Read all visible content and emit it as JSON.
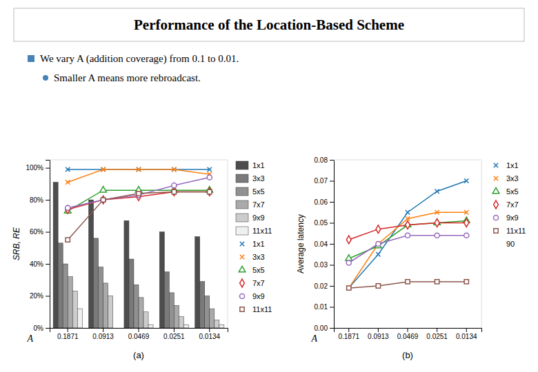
{
  "title": "Performance of the Location-Based Scheme",
  "annotations": [
    "We vary A (addition coverage) from 0.1 to 0.01.",
    "Smaller A means more rebroadcast."
  ],
  "chart_data": [
    {
      "type": "bar",
      "title": "(a)",
      "xlabel": "A",
      "ylabel": "SRB, RE",
      "categories": [
        "0.1871",
        "0.0913",
        "0.0469",
        "0.0251",
        "0.0134"
      ],
      "ylim": [
        0,
        105
      ],
      "yticks": [
        {
          "value": 0,
          "label": "0%"
        },
        {
          "value": 20,
          "label": "20%"
        },
        {
          "value": 40,
          "label": "40%"
        },
        {
          "value": 60,
          "label": "60%"
        },
        {
          "value": 80,
          "label": "80%"
        },
        {
          "value": 100,
          "label": "100%"
        }
      ],
      "legend": "right",
      "series": [
        {
          "name": "1x1",
          "type": "bar",
          "color": "#4d4d4d",
          "values": [
            91,
            80,
            67,
            60,
            57
          ]
        },
        {
          "name": "3x3",
          "type": "bar",
          "color": "#7a7a7a",
          "values": [
            53,
            56,
            43,
            35,
            29
          ]
        },
        {
          "name": "5x5",
          "type": "bar",
          "color": "#919191",
          "values": [
            40,
            38,
            27,
            22,
            20
          ]
        },
        {
          "name": "7x7",
          "type": "bar",
          "color": "#aaaaaa",
          "values": [
            32,
            28,
            19,
            14,
            12
          ]
        },
        {
          "name": "9x9",
          "type": "bar",
          "color": "#cccccc",
          "values": [
            23,
            20,
            10,
            7,
            5
          ]
        },
        {
          "name": "11x11",
          "type": "bar",
          "color": "#f0f0f0",
          "values": [
            12,
            0,
            2,
            2,
            2
          ]
        },
        {
          "name": "1x1",
          "type": "line",
          "marker": "x",
          "values": [
            99,
            99,
            99,
            99,
            99
          ]
        },
        {
          "name": "3x3",
          "type": "line",
          "marker": "x",
          "values": [
            91,
            99,
            99,
            99,
            96
          ]
        },
        {
          "name": "5x5",
          "type": "line",
          "marker": "triangle",
          "values": [
            73,
            86,
            86,
            86,
            86
          ]
        },
        {
          "name": "7x7",
          "type": "line",
          "marker": "diamond",
          "values": [
            74,
            80,
            82,
            85,
            85
          ]
        },
        {
          "name": "9x9",
          "type": "line",
          "marker": "circle",
          "values": [
            75,
            80,
            83,
            89,
            94
          ]
        },
        {
          "name": "11x11",
          "type": "line",
          "marker": "square",
          "values": [
            55,
            80,
            84,
            85,
            85
          ]
        }
      ]
    },
    {
      "type": "line",
      "title": "(b)",
      "xlabel": "A",
      "ylabel": "Average latency",
      "categories": [
        "0.1871",
        "0.0913",
        "0.0469",
        "0.0251",
        "0.0134"
      ],
      "ylim": [
        0,
        0.08
      ],
      "yticks": [
        {
          "value": 0,
          "label": "0.00"
        },
        0.01,
        0.02,
        0.03,
        0.04,
        0.05,
        0.06,
        0.07,
        0.08
      ],
      "legend": "right",
      "annotations": [
        "90"
      ],
      "series": [
        {
          "name": "1x1",
          "marker": "x",
          "values": [
            0.019,
            0.035,
            0.055,
            0.065,
            0.07
          ]
        },
        {
          "name": "3x3",
          "marker": "x",
          "values": [
            0.019,
            0.04,
            0.052,
            0.055,
            0.055
          ]
        },
        {
          "name": "5x5",
          "marker": "triangle",
          "values": [
            0.033,
            0.039,
            0.049,
            0.05,
            0.051
          ]
        },
        {
          "name": "7x7",
          "marker": "diamond",
          "values": [
            0.042,
            0.047,
            0.049,
            0.05,
            0.05
          ]
        },
        {
          "name": "9x9",
          "marker": "circle",
          "values": [
            0.031,
            0.04,
            0.044,
            0.044,
            0.044
          ]
        },
        {
          "name": "11x11",
          "marker": "square",
          "values": [
            0.019,
            0.02,
            0.022,
            0.022,
            0.022
          ]
        }
      ]
    }
  ]
}
